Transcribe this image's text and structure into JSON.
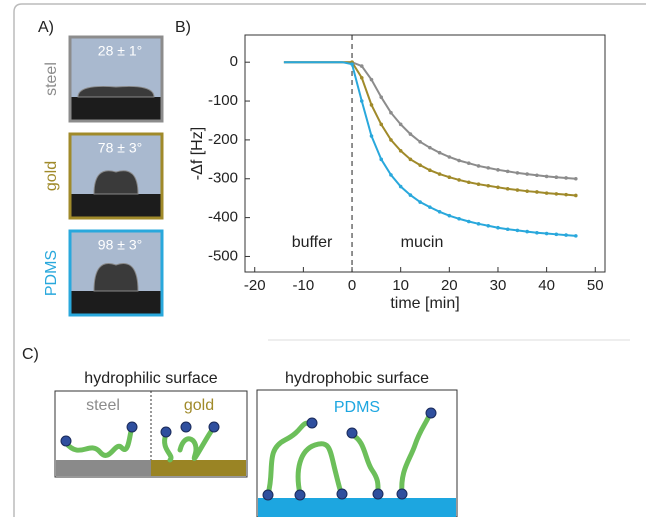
{
  "panel_a": {
    "label": "A)",
    "samples": [
      {
        "name": "steel",
        "angle": "28 ± 1°",
        "color": "#8c8c8c"
      },
      {
        "name": "gold",
        "angle": "78 ± 3°",
        "color": "#a08a2a"
      },
      {
        "name": "PDMS",
        "angle": "98 ± 3°",
        "color": "#29a8dc"
      }
    ]
  },
  "chart_data": {
    "type": "line",
    "panel_label": "B)",
    "x_label": "time [min]",
    "y_label": "-Δf [Hz]",
    "annotations": [
      "buffer",
      "mucin"
    ],
    "vline": 0,
    "x": [
      -14,
      -12,
      -10,
      -8,
      -6,
      -4,
      -2,
      0,
      2,
      4,
      6,
      8,
      10,
      12,
      14,
      16,
      18,
      20,
      22,
      24,
      26,
      28,
      30,
      32,
      34,
      36,
      38,
      40,
      42,
      44,
      46
    ],
    "series": [
      {
        "name": "steel",
        "color": "#8c8c8c",
        "values": [
          0,
          0,
          0,
          0,
          0,
          0,
          0,
          0,
          -10,
          -45,
          -90,
          -130,
          -160,
          -185,
          -205,
          -220,
          -233,
          -244,
          -253,
          -260,
          -267,
          -272,
          -277,
          -281,
          -285,
          -288,
          -291,
          -294,
          -296,
          -298,
          -300
        ]
      },
      {
        "name": "gold",
        "color": "#a08a2a",
        "values": [
          0,
          0,
          0,
          0,
          0,
          0,
          0,
          0,
          -40,
          -110,
          -160,
          -200,
          -228,
          -250,
          -265,
          -278,
          -288,
          -296,
          -303,
          -309,
          -314,
          -318,
          -322,
          -326,
          -329,
          -332,
          -334,
          -337,
          -339,
          -341,
          -343
        ]
      },
      {
        "name": "PDMS",
        "color": "#29a8dc",
        "values": [
          0,
          0,
          0,
          0,
          0,
          0,
          0,
          -5,
          -100,
          -190,
          -250,
          -290,
          -320,
          -342,
          -360,
          -373,
          -385,
          -395,
          -403,
          -410,
          -416,
          -421,
          -426,
          -430,
          -433,
          -436,
          -439,
          -441,
          -443,
          -445,
          -447
        ]
      }
    ],
    "xlim": [
      -22,
      52
    ],
    "ylim": [
      -540,
      70
    ],
    "xticks": [
      -20,
      -10,
      0,
      10,
      20,
      30,
      40,
      50
    ],
    "yticks": [
      0,
      -100,
      -200,
      -300,
      -400,
      -500
    ]
  },
  "panel_c": {
    "label": "C)",
    "hydrophilic": {
      "title": "hydrophilic surface",
      "left": "steel",
      "right": "gold"
    },
    "hydrophobic": {
      "title": "hydrophobic surface",
      "surface": "PDMS"
    }
  }
}
